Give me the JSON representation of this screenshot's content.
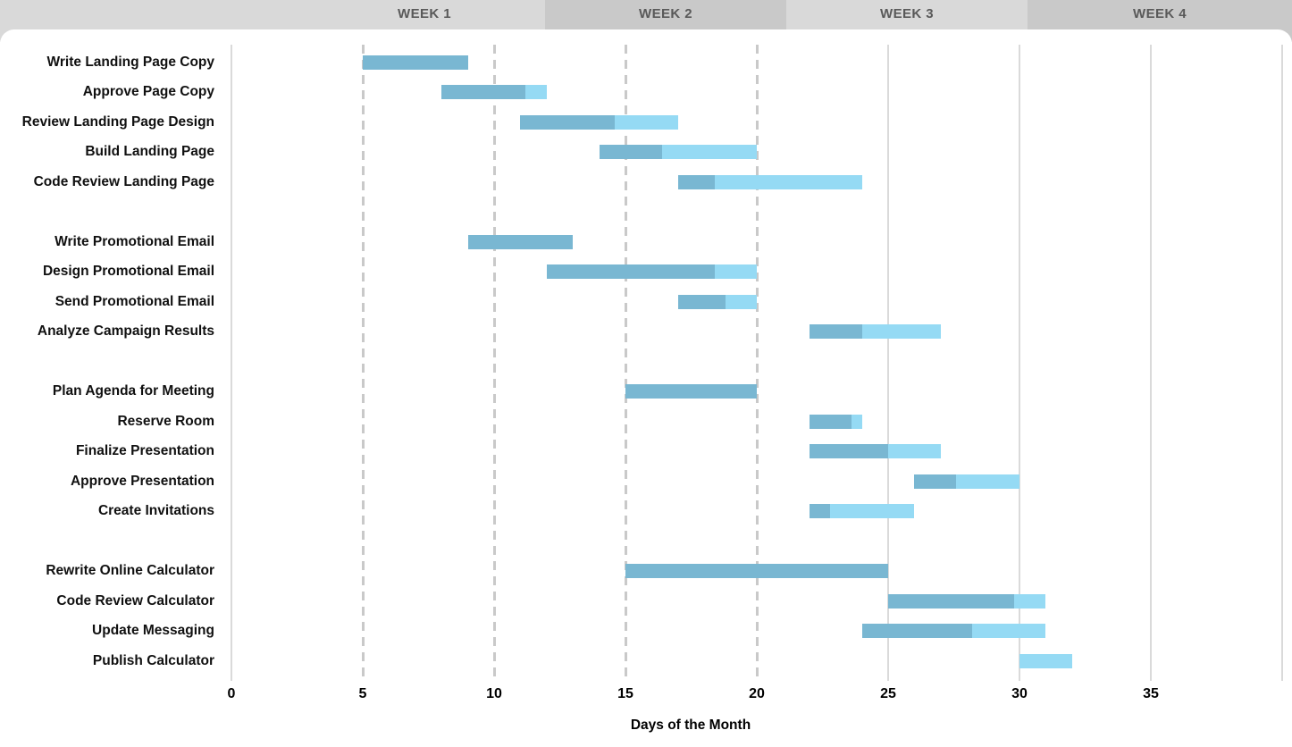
{
  "header": {
    "weeks": [
      {
        "label": "",
        "tone": "light"
      },
      {
        "label": "WEEK 1",
        "tone": "light"
      },
      {
        "label": "WEEK 2",
        "tone": "dark"
      },
      {
        "label": "WEEK 3",
        "tone": "light"
      },
      {
        "label": "WEEK 4",
        "tone": "dark"
      }
    ],
    "colors": {
      "light": "#d9d9d9",
      "dark": "#c9c9c9",
      "text": "#595959"
    }
  },
  "chart_data": {
    "type": "bar",
    "subtype": "gantt",
    "title": "",
    "xlabel": "Days of the Month",
    "ylabel": "",
    "x_ticks": [
      0,
      5,
      10,
      15,
      20,
      25,
      30,
      35
    ],
    "xlim": [
      0,
      40
    ],
    "grid": {
      "dashed_lines_at": [
        5,
        10,
        15,
        20
      ],
      "solid_lines_at": [
        0,
        25,
        30,
        35,
        40
      ]
    },
    "colors": {
      "complete": "#79b7d2",
      "remaining": "#95daf4"
    },
    "legend": "none",
    "tasks": [
      {
        "label": "Write Landing Page Copy",
        "start": 5,
        "end": 9,
        "percent_complete": 100
      },
      {
        "label": "Approve Page Copy",
        "start": 8,
        "end": 12,
        "percent_complete": 80
      },
      {
        "label": "Review Landing Page Design",
        "start": 11,
        "end": 17,
        "percent_complete": 60
      },
      {
        "label": "Build Landing Page",
        "start": 14,
        "end": 20,
        "percent_complete": 40
      },
      {
        "label": "Code Review Landing Page",
        "start": 17,
        "end": 24,
        "percent_complete": 20
      },
      {
        "label": "",
        "spacer": true
      },
      {
        "label": "Write Promotional Email",
        "start": 9,
        "end": 13,
        "percent_complete": 100
      },
      {
        "label": "Design Promotional Email",
        "start": 12,
        "end": 20,
        "percent_complete": 80
      },
      {
        "label": "Send Promotional Email",
        "start": 17,
        "end": 20,
        "percent_complete": 60
      },
      {
        "label": "Analyze Campaign Results",
        "start": 22,
        "end": 27,
        "percent_complete": 40
      },
      {
        "label": "",
        "spacer": true
      },
      {
        "label": "Plan Agenda for Meeting",
        "start": 15,
        "end": 20,
        "percent_complete": 100
      },
      {
        "label": "Reserve Room",
        "start": 22,
        "end": 24,
        "percent_complete": 80
      },
      {
        "label": "Finalize Presentation",
        "start": 22,
        "end": 27,
        "percent_complete": 60
      },
      {
        "label": "Approve Presentation",
        "start": 26,
        "end": 30,
        "percent_complete": 40
      },
      {
        "label": "Create Invitations",
        "start": 22,
        "end": 26,
        "percent_complete": 20
      },
      {
        "label": "",
        "spacer": true
      },
      {
        "label": "Rewrite Online Calculator",
        "start": 15,
        "end": 25,
        "percent_complete": 100
      },
      {
        "label": "Code Review Calculator",
        "start": 25,
        "end": 31,
        "percent_complete": 80
      },
      {
        "label": "Update Messaging",
        "start": 24,
        "end": 31,
        "percent_complete": 60
      },
      {
        "label": "Publish Calculator",
        "start": 30,
        "end": 32,
        "percent_complete": 0
      }
    ]
  }
}
